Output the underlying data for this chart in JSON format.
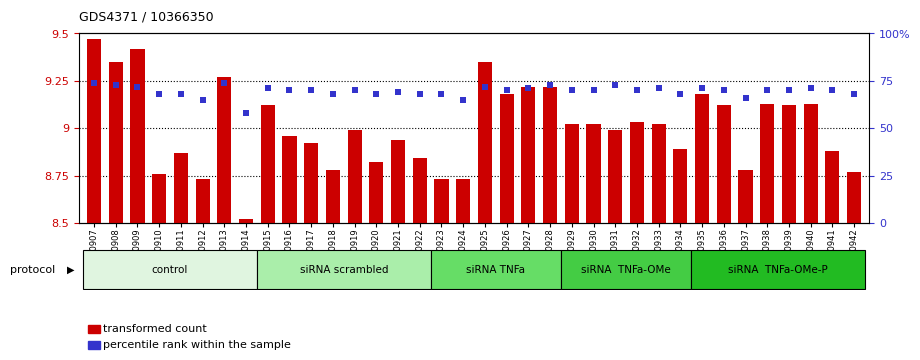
{
  "title": "GDS4371 / 10366350",
  "samples": [
    "GSM790907",
    "GSM790908",
    "GSM790909",
    "GSM790910",
    "GSM790911",
    "GSM790912",
    "GSM790913",
    "GSM790914",
    "GSM790915",
    "GSM790916",
    "GSM790917",
    "GSM790918",
    "GSM790919",
    "GSM790920",
    "GSM790921",
    "GSM790922",
    "GSM790923",
    "GSM790924",
    "GSM790925",
    "GSM790926",
    "GSM790927",
    "GSM790928",
    "GSM790929",
    "GSM790930",
    "GSM790931",
    "GSM790932",
    "GSM790933",
    "GSM790934",
    "GSM790935",
    "GSM790936",
    "GSM790937",
    "GSM790938",
    "GSM790939",
    "GSM790940",
    "GSM790941",
    "GSM790942"
  ],
  "bar_values": [
    9.47,
    9.35,
    9.42,
    8.76,
    8.87,
    8.73,
    9.27,
    8.52,
    9.12,
    8.96,
    8.92,
    8.78,
    8.99,
    8.82,
    8.94,
    8.84,
    8.73,
    8.73,
    9.35,
    9.18,
    9.22,
    9.22,
    9.02,
    9.02,
    8.99,
    9.03,
    9.02,
    8.89,
    9.18,
    9.12,
    8.78,
    9.13,
    9.12,
    9.13,
    8.88,
    8.77
  ],
  "dot_values": [
    74,
    73,
    72,
    68,
    68,
    65,
    74,
    58,
    71,
    70,
    70,
    68,
    70,
    68,
    69,
    68,
    68,
    65,
    72,
    70,
    71,
    73,
    70,
    70,
    73,
    70,
    71,
    68,
    71,
    70,
    66,
    70,
    70,
    71,
    70,
    68
  ],
  "bar_color": "#cc0000",
  "dot_color": "#3333cc",
  "ylim_left": [
    8.5,
    9.5
  ],
  "ylim_right": [
    0,
    100
  ],
  "yticks_left": [
    8.5,
    8.75,
    9.0,
    9.25,
    9.5
  ],
  "ytick_labels_left": [
    "8.5",
    "8.75",
    "9",
    "9.25",
    "9.5"
  ],
  "yticks_right": [
    0,
    25,
    50,
    75,
    100
  ],
  "ytick_labels_right": [
    "0",
    "25",
    "50",
    "75",
    "100%"
  ],
  "hlines": [
    8.75,
    9.0,
    9.25
  ],
  "groups": [
    {
      "label": "control",
      "start": 0,
      "end": 7,
      "color": "#e0f5e0"
    },
    {
      "label": "siRNA scrambled",
      "start": 8,
      "end": 15,
      "color": "#aaeeaa"
    },
    {
      "label": "siRNA TNFa",
      "start": 16,
      "end": 21,
      "color": "#66dd66"
    },
    {
      "label": "siRNA  TNFa-OMe",
      "start": 22,
      "end": 27,
      "color": "#44cc44"
    },
    {
      "label": "siRNA  TNFa-OMe-P",
      "start": 28,
      "end": 35,
      "color": "#22bb22"
    }
  ],
  "protocol_label": "protocol",
  "legend_bar_label": "transformed count",
  "legend_dot_label": "percentile rank within the sample",
  "bar_width": 0.65
}
